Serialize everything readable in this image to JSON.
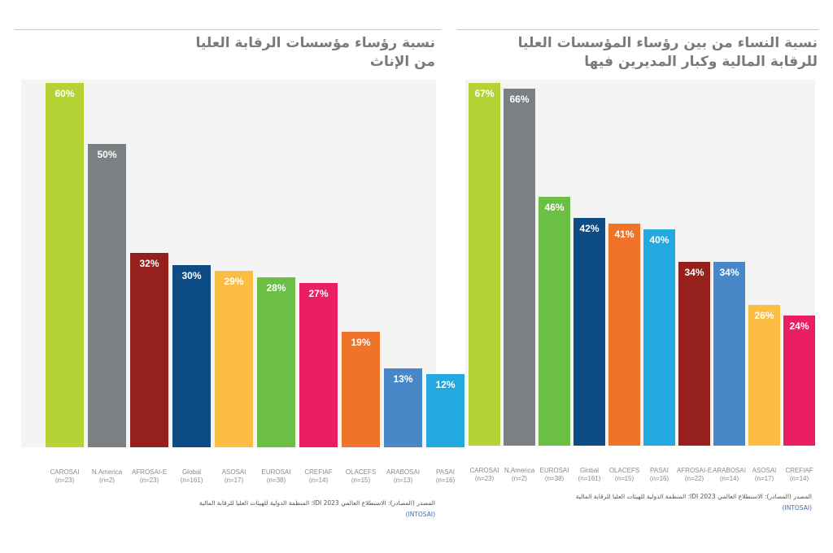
{
  "colors": {
    "CAROSAI": "#b5d334",
    "N.America": "#7d8082",
    "AFROSAI-E": "#96201c",
    "Global": "#0e4c86",
    "ASOSAI": "#fcbd43",
    "EUROSAI": "#6cbf45",
    "CREFIAF": "#ea1e63",
    "OLACEFS": "#f0732a",
    "ARABOSAI": "#4887c8",
    "PASAI": "#22a9e0"
  },
  "chart_data": [
    {
      "type": "bar",
      "title": "نسبة رؤساء مؤسسات الرقابة العليا من الإناث",
      "ylim": [
        0,
        60
      ],
      "categories": [
        {
          "name": "CAROSAI",
          "n": "(n=23)",
          "value": 60,
          "label": "60%"
        },
        {
          "name": "N.America",
          "n": "(n=2)",
          "value": 50,
          "label": "50%"
        },
        {
          "name": "AFROSAI-E",
          "n": "(n=23)",
          "value": 32,
          "label": "32%"
        },
        {
          "name": "Global",
          "n": "(n=161)",
          "value": 30,
          "label": "30%"
        },
        {
          "name": "ASOSAI",
          "n": "(n=17)",
          "value": 29,
          "label": "29%"
        },
        {
          "name": "EUROSAI",
          "n": "(n=38)",
          "value": 28,
          "label": "28%"
        },
        {
          "name": "CREFIAF",
          "n": "(n=14)",
          "value": 27,
          "label": "27%"
        },
        {
          "name": "OLACEFS",
          "n": "(n=15)",
          "value": 19,
          "label": "19%"
        },
        {
          "name": "ARABOSAI",
          "n": "(n=13)",
          "value": 13,
          "label": "13%"
        },
        {
          "name": "PASAI",
          "n": "(n=16)",
          "value": 12,
          "label": "12%"
        }
      ],
      "source_line1": "المصدر (المصادر): الاستطلاع العالمي IDI 2023؛ المنظمة الدولية للهيئات العليا للرقابة المالية",
      "source_line2": "(INTOSAI)"
    },
    {
      "type": "bar",
      "title": "نسبة النساء من بين رؤساء المؤسسات العليا للرقابة المالية وكبار المديرين فيها",
      "ylim": [
        0,
        67
      ],
      "categories": [
        {
          "name": "CAROSAI",
          "n": "(n=23)",
          "value": 67,
          "label": "67%"
        },
        {
          "name": "N.America",
          "n": "(n=2)",
          "value": 66,
          "label": "66%"
        },
        {
          "name": "EUROSAI",
          "n": "(n=38)",
          "value": 46,
          "label": "46%"
        },
        {
          "name": "Global",
          "n": "(n=161)",
          "value": 42,
          "label": "42%"
        },
        {
          "name": "OLACEFS",
          "n": "(n=15)",
          "value": 41,
          "label": "41%"
        },
        {
          "name": "PASAI",
          "n": "(n=16)",
          "value": 40,
          "label": "40%"
        },
        {
          "name": "AFROSAI-E",
          "n": "(n=22)",
          "value": 34,
          "label": "34%"
        },
        {
          "name": "ARABOSAI",
          "n": "(n=14)",
          "value": 34,
          "label": "34%"
        },
        {
          "name": "ASOSAI",
          "n": "(n=17)",
          "value": 26,
          "label": "26%"
        },
        {
          "name": "CREFIAF",
          "n": "(n=14)",
          "value": 24,
          "label": "24%"
        }
      ],
      "source_line1": "المصدر (المصادر): الاستطلاع العالمي IDI 2023؛ المنظمة الدولية للهيئات العليا للرقابة المالية",
      "source_line2": "(INTOSAI)"
    }
  ]
}
